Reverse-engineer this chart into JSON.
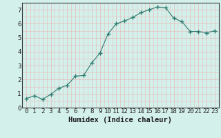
{
  "x": [
    0,
    1,
    2,
    3,
    4,
    5,
    6,
    7,
    8,
    9,
    10,
    11,
    12,
    13,
    14,
    15,
    16,
    17,
    18,
    19,
    20,
    21,
    22,
    23
  ],
  "y": [
    0.65,
    0.85,
    0.6,
    0.95,
    1.4,
    1.6,
    2.25,
    2.3,
    3.2,
    3.9,
    5.3,
    6.0,
    6.2,
    6.45,
    6.8,
    7.0,
    7.2,
    7.15,
    6.4,
    6.15,
    5.45,
    5.45,
    5.35,
    5.5
  ],
  "xlim": [
    -0.5,
    23.5
  ],
  "ylim": [
    0,
    7.5
  ],
  "yticks": [
    0,
    1,
    2,
    3,
    4,
    5,
    6,
    7
  ],
  "xticks": [
    0,
    1,
    2,
    3,
    4,
    5,
    6,
    7,
    8,
    9,
    10,
    11,
    12,
    13,
    14,
    15,
    16,
    17,
    18,
    19,
    20,
    21,
    22,
    23
  ],
  "xlabel": "Humidex (Indice chaleur)",
  "line_color": "#2e7b6e",
  "marker": "+",
  "marker_size": 4,
  "bg_color": "#d4f0eb",
  "grid_color": "#e8b8b8",
  "axis_color": "#3a3a3a",
  "tick_label_color": "#1a1a1a",
  "xlabel_color": "#1a1a1a",
  "xlabel_fontsize": 7.5,
  "tick_fontsize": 6.5
}
